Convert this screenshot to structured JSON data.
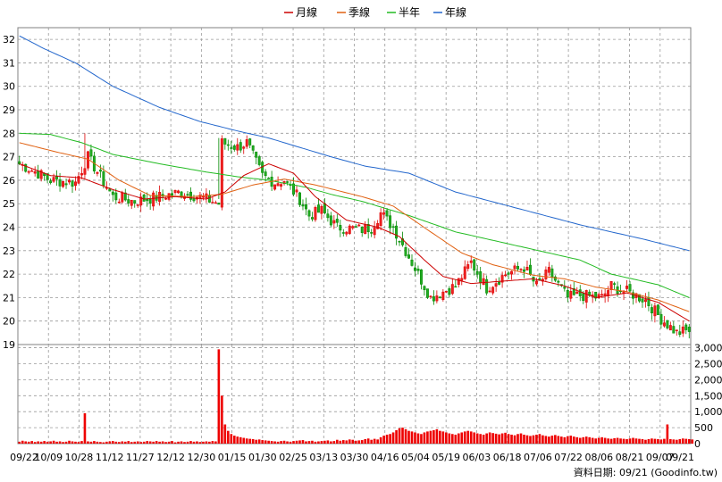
{
  "chart_data": {
    "type": "candlestick",
    "grid": true,
    "legend_position": "top-center",
    "legend": [
      {
        "label": "月線",
        "color": "#cc0000"
      },
      {
        "label": "季線",
        "color": "#e06010"
      },
      {
        "label": "半年",
        "color": "#22bb22"
      },
      {
        "label": "年線",
        "color": "#2266cc"
      }
    ],
    "price_axis": {
      "ylim": [
        19,
        32.5
      ],
      "ticks": [
        19,
        20,
        21,
        22,
        23,
        24,
        25,
        26,
        27,
        28,
        29,
        30,
        31,
        32
      ],
      "side": "left"
    },
    "volume_axis": {
      "ylim": [
        0,
        3100
      ],
      "ticks": [
        "0",
        "500",
        "1,000",
        "1,500",
        "2,000",
        "2,500",
        "3,000"
      ],
      "tick_values": [
        0,
        500,
        1000,
        1500,
        2000,
        2500,
        3000
      ],
      "side": "right"
    },
    "x_tick_labels": [
      "09/22",
      "10/09",
      "10/28",
      "11/12",
      "11/27",
      "12/12",
      "12/30",
      "01/15",
      "01/30",
      "02/25",
      "03/13",
      "03/30",
      "04/16",
      "05/04",
      "05/19",
      "06/03",
      "06/18",
      "07/06",
      "07/22",
      "08/06",
      "08/21",
      "09/07",
      "09/21"
    ],
    "price_path_anchors": [
      [
        0,
        26.7
      ],
      [
        6,
        26.3
      ],
      [
        10,
        26.0
      ],
      [
        18,
        25.9
      ],
      [
        22,
        27.0
      ],
      [
        30,
        25.3
      ],
      [
        37,
        25.1
      ],
      [
        45,
        25.3
      ],
      [
        52,
        25.5
      ],
      [
        60,
        25.2
      ],
      [
        64,
        25.0
      ],
      [
        65,
        27.6
      ],
      [
        70,
        27.4
      ],
      [
        73,
        27.6
      ],
      [
        78,
        26.2
      ],
      [
        82,
        25.9
      ],
      [
        85,
        26.0
      ],
      [
        90,
        25.2
      ],
      [
        93,
        24.5
      ],
      [
        97,
        24.7
      ],
      [
        102,
        24.0
      ],
      [
        110,
        23.9
      ],
      [
        113,
        24.0
      ],
      [
        116,
        24.6
      ],
      [
        120,
        24.0
      ],
      [
        126,
        22.5
      ],
      [
        132,
        21.0
      ],
      [
        140,
        21.5
      ],
      [
        145,
        22.5
      ],
      [
        150,
        21.4
      ],
      [
        156,
        22.0
      ],
      [
        162,
        22.3
      ],
      [
        166,
        21.5
      ],
      [
        170,
        22.1
      ],
      [
        176,
        21.0
      ],
      [
        180,
        21.1
      ],
      [
        187,
        21.0
      ],
      [
        190,
        21.5
      ],
      [
        196,
        21.2
      ],
      [
        201,
        20.9
      ],
      [
        206,
        20.1
      ],
      [
        211,
        19.5
      ],
      [
        215,
        19.6
      ]
    ],
    "volume_values": [
      60,
      90,
      70,
      60,
      80,
      50,
      70,
      60,
      80,
      60,
      70,
      90,
      60,
      70,
      50,
      60,
      90,
      70,
      60,
      50,
      80,
      950,
      70,
      60,
      80,
      60,
      50,
      40,
      60,
      70,
      80,
      60,
      50,
      70,
      60,
      80,
      50,
      60,
      70,
      50,
      60,
      80,
      70,
      60,
      80,
      60,
      70,
      50,
      60,
      80,
      40,
      60,
      70,
      50,
      60,
      80,
      60,
      70,
      50,
      60,
      70,
      60,
      80,
      70,
      2950,
      1500,
      600,
      400,
      300,
      250,
      220,
      200,
      180,
      160,
      150,
      140,
      120,
      130,
      110,
      100,
      90,
      80,
      70,
      60,
      80,
      90,
      70,
      60,
      80,
      90,
      100,
      110,
      70,
      80,
      90,
      60,
      70,
      80,
      90,
      100,
      70,
      80,
      120,
      90,
      110,
      100,
      130,
      120,
      90,
      100,
      110,
      140,
      160,
      120,
      150,
      130,
      200,
      250,
      280,
      300,
      350,
      420,
      480,
      500,
      450,
      400,
      380,
      350,
      320,
      300,
      350,
      380,
      400,
      420,
      450,
      400,
      380,
      350,
      320,
      300,
      280,
      320,
      350,
      380,
      400,
      380,
      350,
      320,
      300,
      280,
      320,
      350,
      330,
      310,
      290,
      320,
      340,
      300,
      280,
      260,
      300,
      320,
      280,
      260,
      240,
      260,
      280,
      300,
      260,
      240,
      220,
      250,
      270,
      240,
      220,
      200,
      230,
      250,
      220,
      200,
      180,
      200,
      220,
      200,
      180,
      160,
      180,
      200,
      180,
      160,
      150,
      170,
      180,
      160,
      150,
      140,
      160,
      180,
      160,
      150,
      140,
      120,
      140,
      160,
      150,
      140,
      130,
      150,
      600,
      140,
      130,
      120,
      140,
      160,
      150,
      140,
      130
    ],
    "year_line": [
      [
        0,
        32.15
      ],
      [
        8,
        31.6
      ],
      [
        18,
        31.0
      ],
      [
        30,
        30.0
      ],
      [
        45,
        29.1
      ],
      [
        58,
        28.5
      ],
      [
        70,
        28.1
      ],
      [
        80,
        27.8
      ],
      [
        90,
        27.4
      ],
      [
        100,
        27.0
      ],
      [
        111,
        26.6
      ],
      [
        125,
        26.3
      ],
      [
        140,
        25.5
      ],
      [
        160,
        24.8
      ],
      [
        180,
        24.1
      ],
      [
        200,
        23.5
      ],
      [
        215,
        23.0
      ]
    ],
    "half_year_line": [
      [
        0,
        28.0
      ],
      [
        10,
        27.95
      ],
      [
        20,
        27.6
      ],
      [
        30,
        27.1
      ],
      [
        45,
        26.7
      ],
      [
        60,
        26.35
      ],
      [
        70,
        26.15
      ],
      [
        80,
        26.0
      ],
      [
        92,
        25.7
      ],
      [
        100,
        25.4
      ],
      [
        110,
        25.1
      ],
      [
        125,
        24.5
      ],
      [
        140,
        23.8
      ],
      [
        160,
        23.2
      ],
      [
        180,
        22.6
      ],
      [
        190,
        22.0
      ],
      [
        205,
        21.55
      ],
      [
        215,
        21.0
      ]
    ],
    "quarter_line": [
      [
        0,
        27.6
      ],
      [
        12,
        27.2
      ],
      [
        22,
        26.9
      ],
      [
        32,
        26.0
      ],
      [
        42,
        25.35
      ],
      [
        55,
        25.3
      ],
      [
        65,
        25.4
      ],
      [
        75,
        25.8
      ],
      [
        85,
        26.05
      ],
      [
        95,
        25.8
      ],
      [
        110,
        25.3
      ],
      [
        120,
        24.9
      ],
      [
        132,
        23.8
      ],
      [
        142,
        22.9
      ],
      [
        152,
        22.4
      ],
      [
        165,
        21.95
      ],
      [
        175,
        21.8
      ],
      [
        185,
        21.45
      ],
      [
        195,
        21.25
      ],
      [
        205,
        20.9
      ],
      [
        215,
        20.4
      ]
    ],
    "month_line": [
      [
        0,
        26.7
      ],
      [
        10,
        26.2
      ],
      [
        20,
        26.1
      ],
      [
        30,
        25.6
      ],
      [
        40,
        25.2
      ],
      [
        50,
        25.3
      ],
      [
        60,
        25.2
      ],
      [
        66,
        25.5
      ],
      [
        72,
        26.2
      ],
      [
        80,
        26.7
      ],
      [
        88,
        26.3
      ],
      [
        95,
        25.3
      ],
      [
        105,
        24.3
      ],
      [
        115,
        24.0
      ],
      [
        122,
        23.6
      ],
      [
        130,
        22.6
      ],
      [
        136,
        21.9
      ],
      [
        145,
        21.6
      ],
      [
        155,
        21.7
      ],
      [
        165,
        21.8
      ],
      [
        175,
        21.5
      ],
      [
        185,
        21.0
      ],
      [
        195,
        21.2
      ],
      [
        205,
        20.8
      ],
      [
        215,
        20.0
      ]
    ],
    "footer": "資料日期: 09/21 (Goodinfo.tw)"
  }
}
